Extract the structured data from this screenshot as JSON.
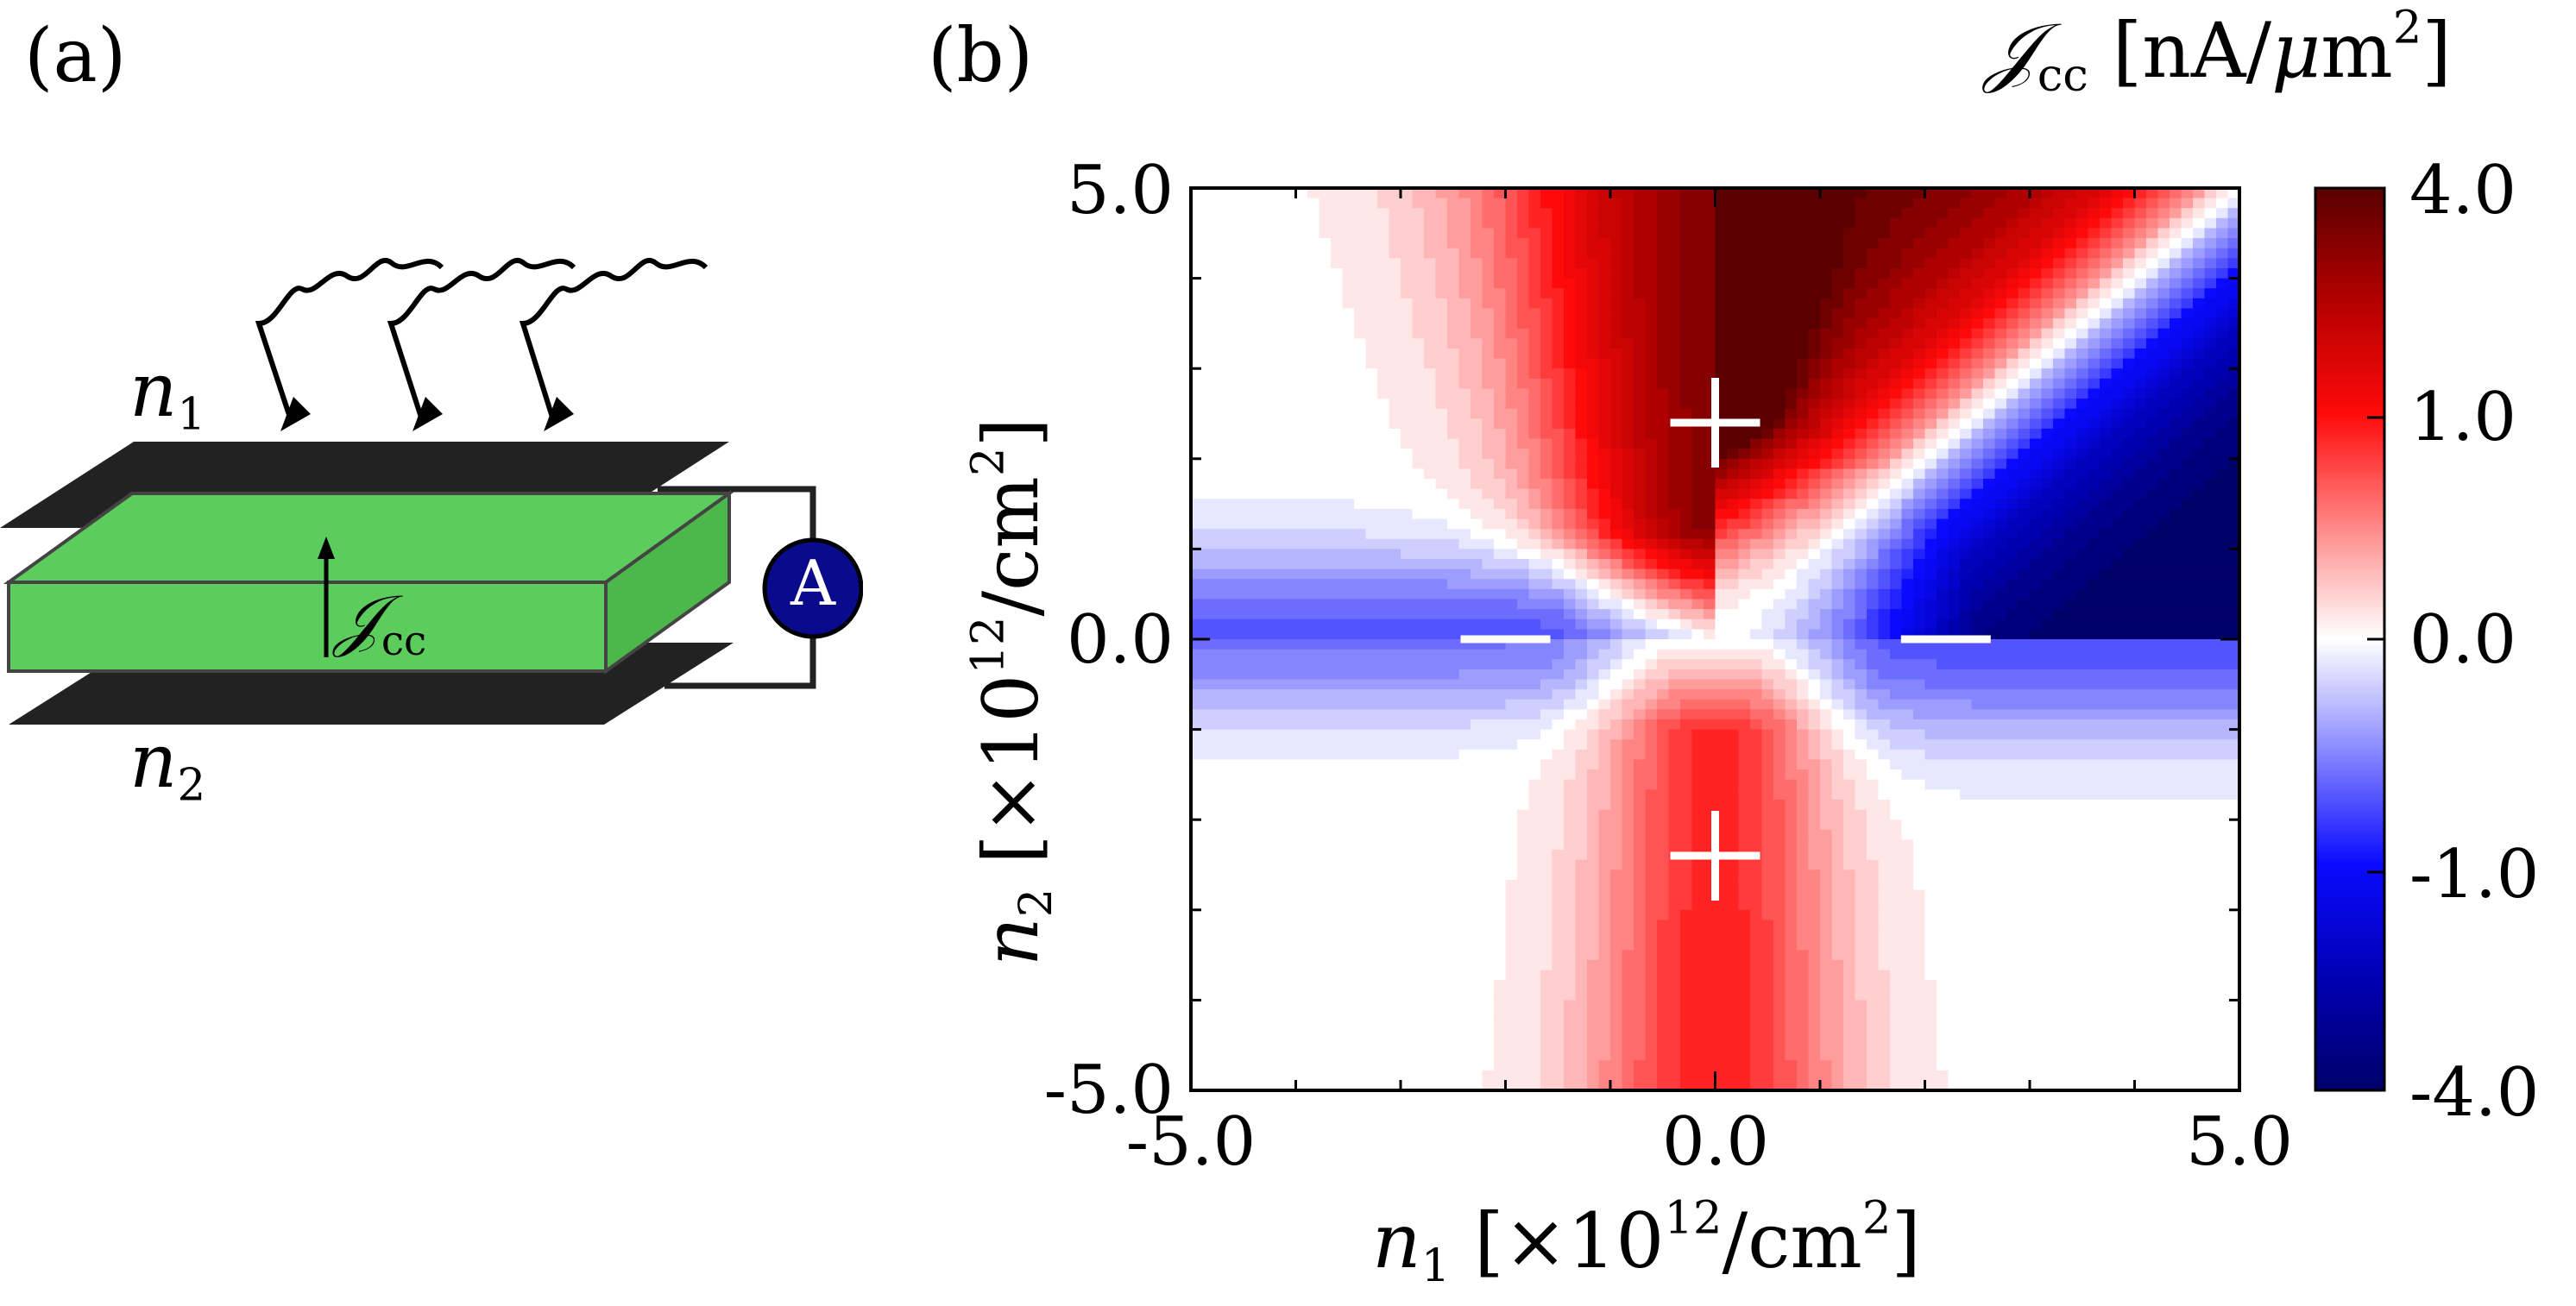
{
  "panels": {
    "a_label": "(a)",
    "b_label": "(b)"
  },
  "schematic": {
    "top_gate_label_base": "n",
    "top_gate_label_sub": "1",
    "bottom_gate_label_base": "n",
    "bottom_gate_label_sub": "2",
    "current_label_base": "𝒥",
    "current_label_sub": "cc",
    "ammeter_label": "A",
    "colors": {
      "gate": "#222222",
      "channel": "#5ccc5c",
      "ammeter": "#0a0a8c"
    }
  },
  "colorbar": {
    "title_symbol": "𝒥",
    "title_sub": "cc",
    "title_unit_pre": "[nA/",
    "title_unit_mu": "μ",
    "title_unit_m": "m",
    "title_unit_sup": "2",
    "title_unit_post": "]",
    "tick_labels": [
      "4.0",
      "1.0",
      "0.0",
      "-1.0",
      "-4.0"
    ],
    "colors": {
      "max": "#6a0000",
      "mid": "#ffffff",
      "min": "#00008b"
    }
  },
  "axes": {
    "xlabel_base": "n",
    "xlabel_sub": "1",
    "xlabel_pre": "[×10",
    "xlabel_sup": "12",
    "xlabel_unit": "/cm",
    "xlabel_unit_sup": "2",
    "xlabel_post": "]",
    "ylabel_base": "n",
    "ylabel_sub": "2",
    "ylabel_pre": "[×10",
    "ylabel_sup": "12",
    "ylabel_unit": "/cm",
    "ylabel_unit_sup": "2",
    "ylabel_post": "]",
    "x_tick_labels": [
      "-5.0",
      "0.0",
      "5.0"
    ],
    "y_tick_labels": [
      "5.0",
      "0.0",
      "-5.0"
    ]
  },
  "chart_data": {
    "type": "heatmap",
    "x_range": [
      -5.0,
      5.0
    ],
    "y_range": [
      -5.0,
      5.0
    ],
    "x_ticks": [
      -5.0,
      0.0,
      5.0
    ],
    "y_ticks": [
      -5.0,
      0.0,
      5.0
    ],
    "color_range": [
      -4.0,
      4.0
    ],
    "colorbar_ticks": [
      4.0,
      1.0,
      0.0,
      -1.0,
      -4.0
    ],
    "annotations": [
      {
        "text": "+",
        "x": 0.0,
        "y": 2.4
      },
      {
        "text": "+",
        "x": 0.0,
        "y": -2.4
      },
      {
        "text": "−",
        "x": -2.0,
        "y": 0.0
      },
      {
        "text": "−",
        "x": 2.2,
        "y": 0.0
      }
    ]
  }
}
